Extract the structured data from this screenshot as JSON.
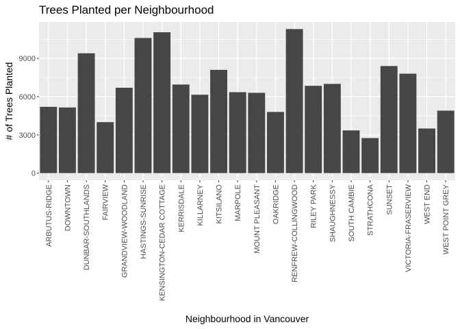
{
  "chart_data": {
    "type": "bar",
    "title": "Trees Planted per Neighbourhood",
    "xlabel": "Neighbourhood in Vancouver",
    "ylabel": "# of Trees Planted",
    "categories": [
      "ARBUTUS-RIDGE",
      "DOWNTOWN",
      "DUNBAR-SOUTHLANDS",
      "FAIRVIEW",
      "GRANDVIEW-WOODLAND",
      "HASTINGS-SUNRISE",
      "KENSINGTON-CEDAR COTTAGE",
      "KERRISDALE",
      "KILLARNEY",
      "KITSILANO",
      "MARPOLE",
      "MOUNT PLEASANT",
      "OAKRIDGE",
      "RENFREW-COLLINGWOOD",
      "RILEY PARK",
      "SHAUGHNESSY",
      "SOUTH CAMBIE",
      "STRATHCONA",
      "SUNSET",
      "VICTORIA-FRASERVIEW",
      "WEST END",
      "WEST POINT GREY"
    ],
    "values": [
      5200,
      5150,
      9400,
      4000,
      6700,
      10600,
      11050,
      6950,
      6150,
      8100,
      6350,
      6300,
      4800,
      11300,
      6850,
      7000,
      3350,
      2750,
      8400,
      7800,
      3500,
      4900
    ],
    "yticks": [
      0,
      3000,
      6000,
      9000
    ],
    "ytick_labels": [
      "0",
      "3000",
      "6000",
      "9000"
    ],
    "ylim": [
      -560,
      11860
    ],
    "grid": true,
    "colors": {
      "bar": "#464646",
      "panel": "#ebebeb",
      "grid": "#ffffff"
    }
  }
}
